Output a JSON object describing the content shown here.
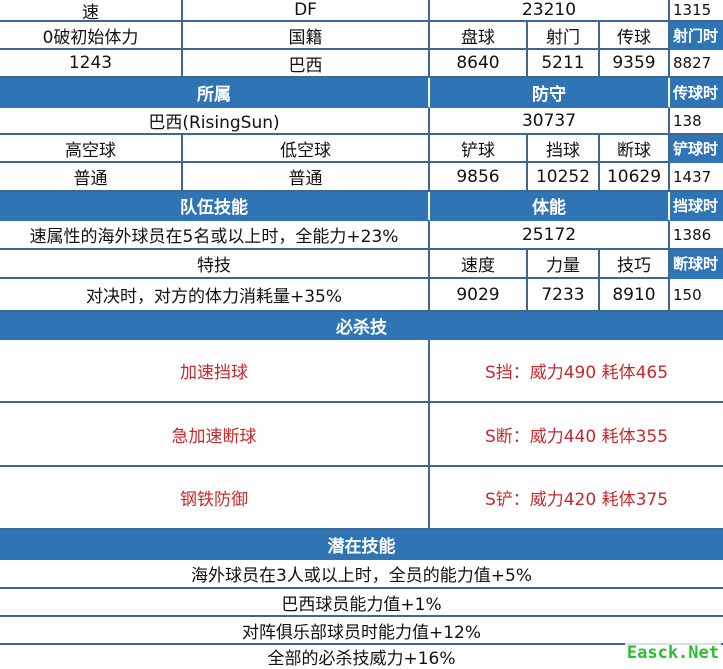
{
  "colors": {
    "header": "#2f74b5",
    "border": "#3d6893",
    "skill_text": "#c9282c",
    "watermark": "#2bbf2b"
  },
  "row0": {
    "c1": "速",
    "c2": "DF",
    "c3": "23210",
    "c4": "1315"
  },
  "row1": {
    "c1": "0破初始体力",
    "c2": "国籍",
    "c3": "盘球",
    "c4": "射门",
    "c5": "传球",
    "c6": "射门时"
  },
  "row2": {
    "c1": "1243",
    "c2": "巴西",
    "c3": "8640",
    "c4": "5211",
    "c5": "9359",
    "c6": "8827"
  },
  "row3": {
    "c1": "所属",
    "c2": "防守",
    "c3": "传球时"
  },
  "row4": {
    "c1": "巴西(RisingSun)",
    "c2": "30737",
    "c3": "138"
  },
  "row5": {
    "c1": "高空球",
    "c2": "低空球",
    "c3": "铲球",
    "c4": "挡球",
    "c5": "断球",
    "c6": "铲球时"
  },
  "row6": {
    "c1": "普通",
    "c2": "普通",
    "c3": "9856",
    "c4": "10252",
    "c5": "10629",
    "c6": "1437"
  },
  "row7": {
    "c1": "队伍技能",
    "c2": "体能",
    "c3": "挡球时"
  },
  "row8": {
    "c1": "速属性的海外球员在5名或以上时，全能力+23%",
    "c2": "25172",
    "c3": "1386"
  },
  "row9": {
    "c1": "特技",
    "c2": "速度",
    "c3": "力量",
    "c4": "技巧",
    "c5": "断球时"
  },
  "row10": {
    "c1": "对决时，对方的体力消耗量+35%",
    "c2": "9029",
    "c3": "7233",
    "c4": "8910",
    "c5": "150"
  },
  "special": {
    "title": "必杀技",
    "items": [
      {
        "name": "加速挡球",
        "stats": "S挡：威力490 耗体465"
      },
      {
        "name": "急加速断球",
        "stats": "S断：威力440 耗体355"
      },
      {
        "name": "钢铁防御",
        "stats": "S铲：威力420 耗体375"
      }
    ]
  },
  "latent": {
    "title": "潜在技能",
    "items": [
      "海外球员在3人或以上时，全员的能力值+5%",
      "巴西球员能力值+1%",
      "对阵俱乐部球员时能力值+12%",
      "全部的必杀技威力+16%"
    ]
  },
  "watermark": "Easck.Net"
}
